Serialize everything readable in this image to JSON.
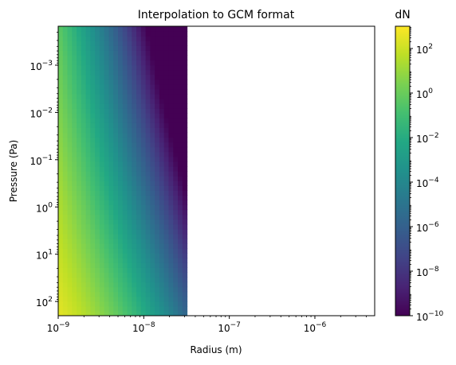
{
  "chart_data": {
    "type": "heatmap",
    "title": "Interpolation to GCM format",
    "xlabel": "Radius (m)",
    "ylabel": "Pressure (Pa)",
    "xscale": "log",
    "yscale": "log",
    "xlim": [
      1e-09,
      5e-06
    ],
    "ylim": [
      200,
      0.00015
    ],
    "y_axis_inverted": true,
    "grid": false,
    "colormap": "viridis",
    "colorbar": {
      "label": "dN",
      "scale": "log",
      "range": [
        1e-10,
        1000
      ],
      "ticks": [
        1e-10,
        1e-08,
        1e-06,
        0.0001,
        0.01,
        1,
        100
      ]
    },
    "x_ticks": [
      {
        "value": 1e-09,
        "base": "10",
        "exp": "−9"
      },
      {
        "value": 1e-08,
        "base": "10",
        "exp": "−8"
      },
      {
        "value": 1e-07,
        "base": "10",
        "exp": "−7"
      },
      {
        "value": 1e-06,
        "base": "10",
        "exp": "−6"
      }
    ],
    "y_ticks": [
      {
        "value": 0.001,
        "base": "10",
        "exp": "−3"
      },
      {
        "value": 0.01,
        "base": "10",
        "exp": "−2"
      },
      {
        "value": 0.1,
        "base": "10",
        "exp": "−1"
      },
      {
        "value": 1,
        "base": "10",
        "exp": "0"
      },
      {
        "value": 10,
        "base": "10",
        "exp": "1"
      },
      {
        "value": 100,
        "base": "10",
        "exp": "2"
      }
    ],
    "cbar_ticks": [
      {
        "value": 1e-10,
        "base": "10",
        "exp": "−10"
      },
      {
        "value": 1e-08,
        "base": "10",
        "exp": "−8"
      },
      {
        "value": 1e-06,
        "base": "10",
        "exp": "−6"
      },
      {
        "value": 0.0001,
        "base": "10",
        "exp": "−4"
      },
      {
        "value": 0.01,
        "base": "10",
        "exp": "−2"
      },
      {
        "value": 1,
        "base": "10",
        "exp": "0"
      },
      {
        "value": 100,
        "base": "10",
        "exp": "2"
      }
    ],
    "field": {
      "radius_max": 3.2e-08,
      "description_of_trend": "dN decreases with radius and decreases toward lower pressure",
      "sample_points": [
        {
          "radius": 1e-09,
          "pressure": 100,
          "dN": 300
        },
        {
          "radius": 1e-09,
          "pressure": 1,
          "dN": 60
        },
        {
          "radius": 1e-09,
          "pressure": 0.01,
          "dN": 0.5
        },
        {
          "radius": 1e-09,
          "pressure": 0.0002,
          "dN": 0.01
        },
        {
          "radius": 3e-09,
          "pressure": 100,
          "dN": 20
        },
        {
          "radius": 1e-08,
          "pressure": 100,
          "dN": 1e-06
        },
        {
          "radius": 1e-08,
          "pressure": 0.0002,
          "dN": 1e-10
        },
        {
          "radius": 2e-08,
          "pressure": 1,
          "dN": 1e-10
        }
      ]
    }
  }
}
